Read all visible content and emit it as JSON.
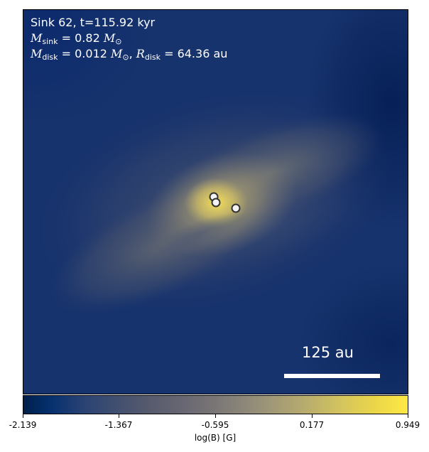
{
  "annotation": {
    "line1": "Sink 62, t=115.92 kyr",
    "msink_symbol": "M",
    "msink_sub": "sink",
    "msink_value": "= 0.82",
    "mdisk_symbol": "M",
    "mdisk_sub": "disk",
    "mdisk_value": "= 0.012",
    "rdisk_symbol": "R",
    "rdisk_sub": "disk",
    "rdisk_value": "= 64.36 au",
    "solar_symbol": "M",
    "solar_sub": "⊙"
  },
  "scale_bar": {
    "label": "125 au"
  },
  "colorbar": {
    "title": "log(B) [G]",
    "ticks": [
      "-2.139",
      "-1.367",
      "-0.595",
      "0.177",
      "0.949"
    ],
    "colors": [
      "#00204c",
      "#2b4373",
      "#7a7676",
      "#bcb06b",
      "#ffe945"
    ]
  },
  "sinks": {
    "count": 3
  }
}
